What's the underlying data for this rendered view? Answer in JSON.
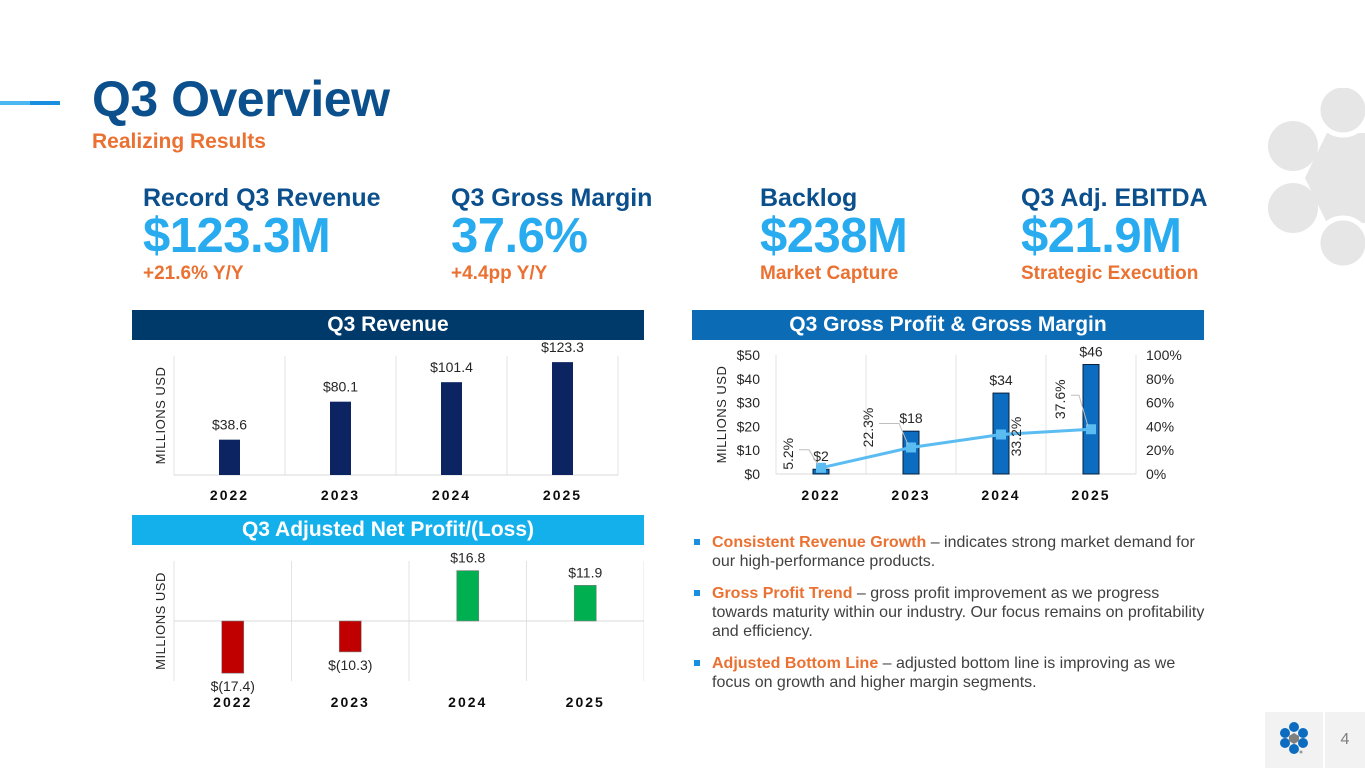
{
  "header": {
    "title": "Q3 Overview",
    "subtitle": "Realizing Results"
  },
  "kpis": [
    {
      "label": "Record Q3 Revenue",
      "value": "$123.3M",
      "note": "+21.6% Y/Y"
    },
    {
      "label": "Q3 Gross Margin",
      "value": "37.6%",
      "note": "+4.4pp Y/Y"
    },
    {
      "label": "Backlog",
      "value": "$238M",
      "note": "Market Capture"
    },
    {
      "label": "Q3 Adj. EBITDA",
      "value": "$21.9M",
      "note": "Strategic Execution"
    }
  ],
  "colors": {
    "title_blue": "#0b4f8c",
    "kpi_value_blue": "#29abf0",
    "orange": "#ea7131",
    "revenue_header": "#003a6b",
    "gross_header": "#0b6cb5",
    "net_header": "#14b0ec",
    "revenue_bar": "#0c2461",
    "gross_bar": "#0b6cc0",
    "margin_line": "#5bbcf2",
    "profit_green": "#00b050",
    "loss_red": "#c00000"
  },
  "chart_data": [
    {
      "type": "bar",
      "title": "Q3 Revenue",
      "ylabel": "MILLIONS USD",
      "xlabel": "",
      "categories": [
        "2022",
        "2023",
        "2024",
        "2025"
      ],
      "values": [
        38.6,
        80.1,
        101.4,
        123.3
      ],
      "data_labels": [
        "$38.6",
        "$80.1",
        "$101.4",
        "$123.3"
      ],
      "ylim": [
        0,
        130
      ],
      "grid": "vertical",
      "legend": "none"
    },
    {
      "type": "bar",
      "title": "Q3 Gross Profit & Gross Margin",
      "ylabel": "MILLIONS USD",
      "xlabel": "",
      "categories": [
        "2022",
        "2023",
        "2024",
        "2025"
      ],
      "series": [
        {
          "name": "Gross Profit",
          "type": "bar",
          "axis": "left",
          "values": [
            2,
            18,
            34,
            46
          ],
          "data_labels": [
            "$2",
            "$18",
            "$34",
            "$46"
          ]
        },
        {
          "name": "Gross Margin",
          "type": "line",
          "axis": "right",
          "values": [
            5.2,
            22.3,
            33.2,
            37.6
          ],
          "data_labels": [
            "5.2%",
            "22.3%",
            "33.2%",
            "37.6%"
          ]
        }
      ],
      "ylim": [
        0,
        50
      ],
      "yticks": [
        "$0",
        "$10",
        "$20",
        "$30",
        "$40",
        "$50"
      ],
      "y2lim": [
        0,
        100
      ],
      "y2ticks": [
        "0%",
        "20%",
        "40%",
        "60%",
        "80%",
        "100%"
      ],
      "grid": "vertical",
      "legend": "none"
    },
    {
      "type": "bar",
      "title": "Q3 Adjusted Net Profit/(Loss)",
      "ylabel": "MILLIONS USD",
      "xlabel": "",
      "categories": [
        "2022",
        "2023",
        "2024",
        "2025"
      ],
      "values": [
        -17.4,
        -10.3,
        16.8,
        11.9
      ],
      "data_labels": [
        "$(17.4)",
        "$(10.3)",
        "$16.8",
        "$11.9"
      ],
      "ylim": [
        -20,
        20
      ],
      "grid": "vertical",
      "legend": "none"
    }
  ],
  "bullets": [
    {
      "highlight": "Consistent Revenue Growth",
      "text": " – indicates strong market demand for our high-performance products."
    },
    {
      "highlight": "Gross Profit Trend",
      "text": " – gross profit improvement as we progress towards maturity within our industry. Our focus remains on profitability and efficiency."
    },
    {
      "highlight": "Adjusted Bottom Line",
      "text": " – adjusted bottom line is improving as we focus on growth and higher margin segments."
    }
  ],
  "footer": {
    "page_number": "4"
  }
}
